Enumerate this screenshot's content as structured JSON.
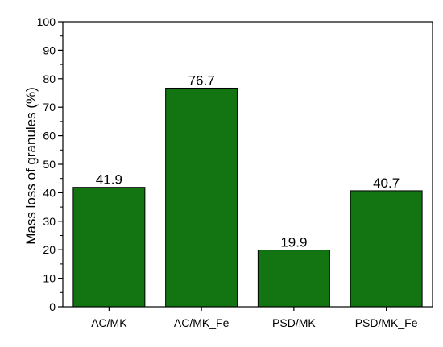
{
  "chart_data": {
    "type": "bar",
    "categories": [
      "AC/MK",
      "AC/MK_Fe",
      "PSD/MK",
      "PSD/MK_Fe"
    ],
    "values": [
      41.9,
      76.7,
      19.9,
      40.7
    ],
    "data_labels": [
      "41.9",
      "76.7",
      "19.9",
      "40.7"
    ],
    "title": "",
    "xlabel": "",
    "ylabel": "Mass loss of granules (%)",
    "ylim": [
      0,
      100
    ],
    "yticks": [
      0,
      10,
      20,
      30,
      40,
      50,
      60,
      70,
      80,
      90,
      100
    ],
    "bar_color": "#127512",
    "grid": false,
    "legend": "none"
  }
}
